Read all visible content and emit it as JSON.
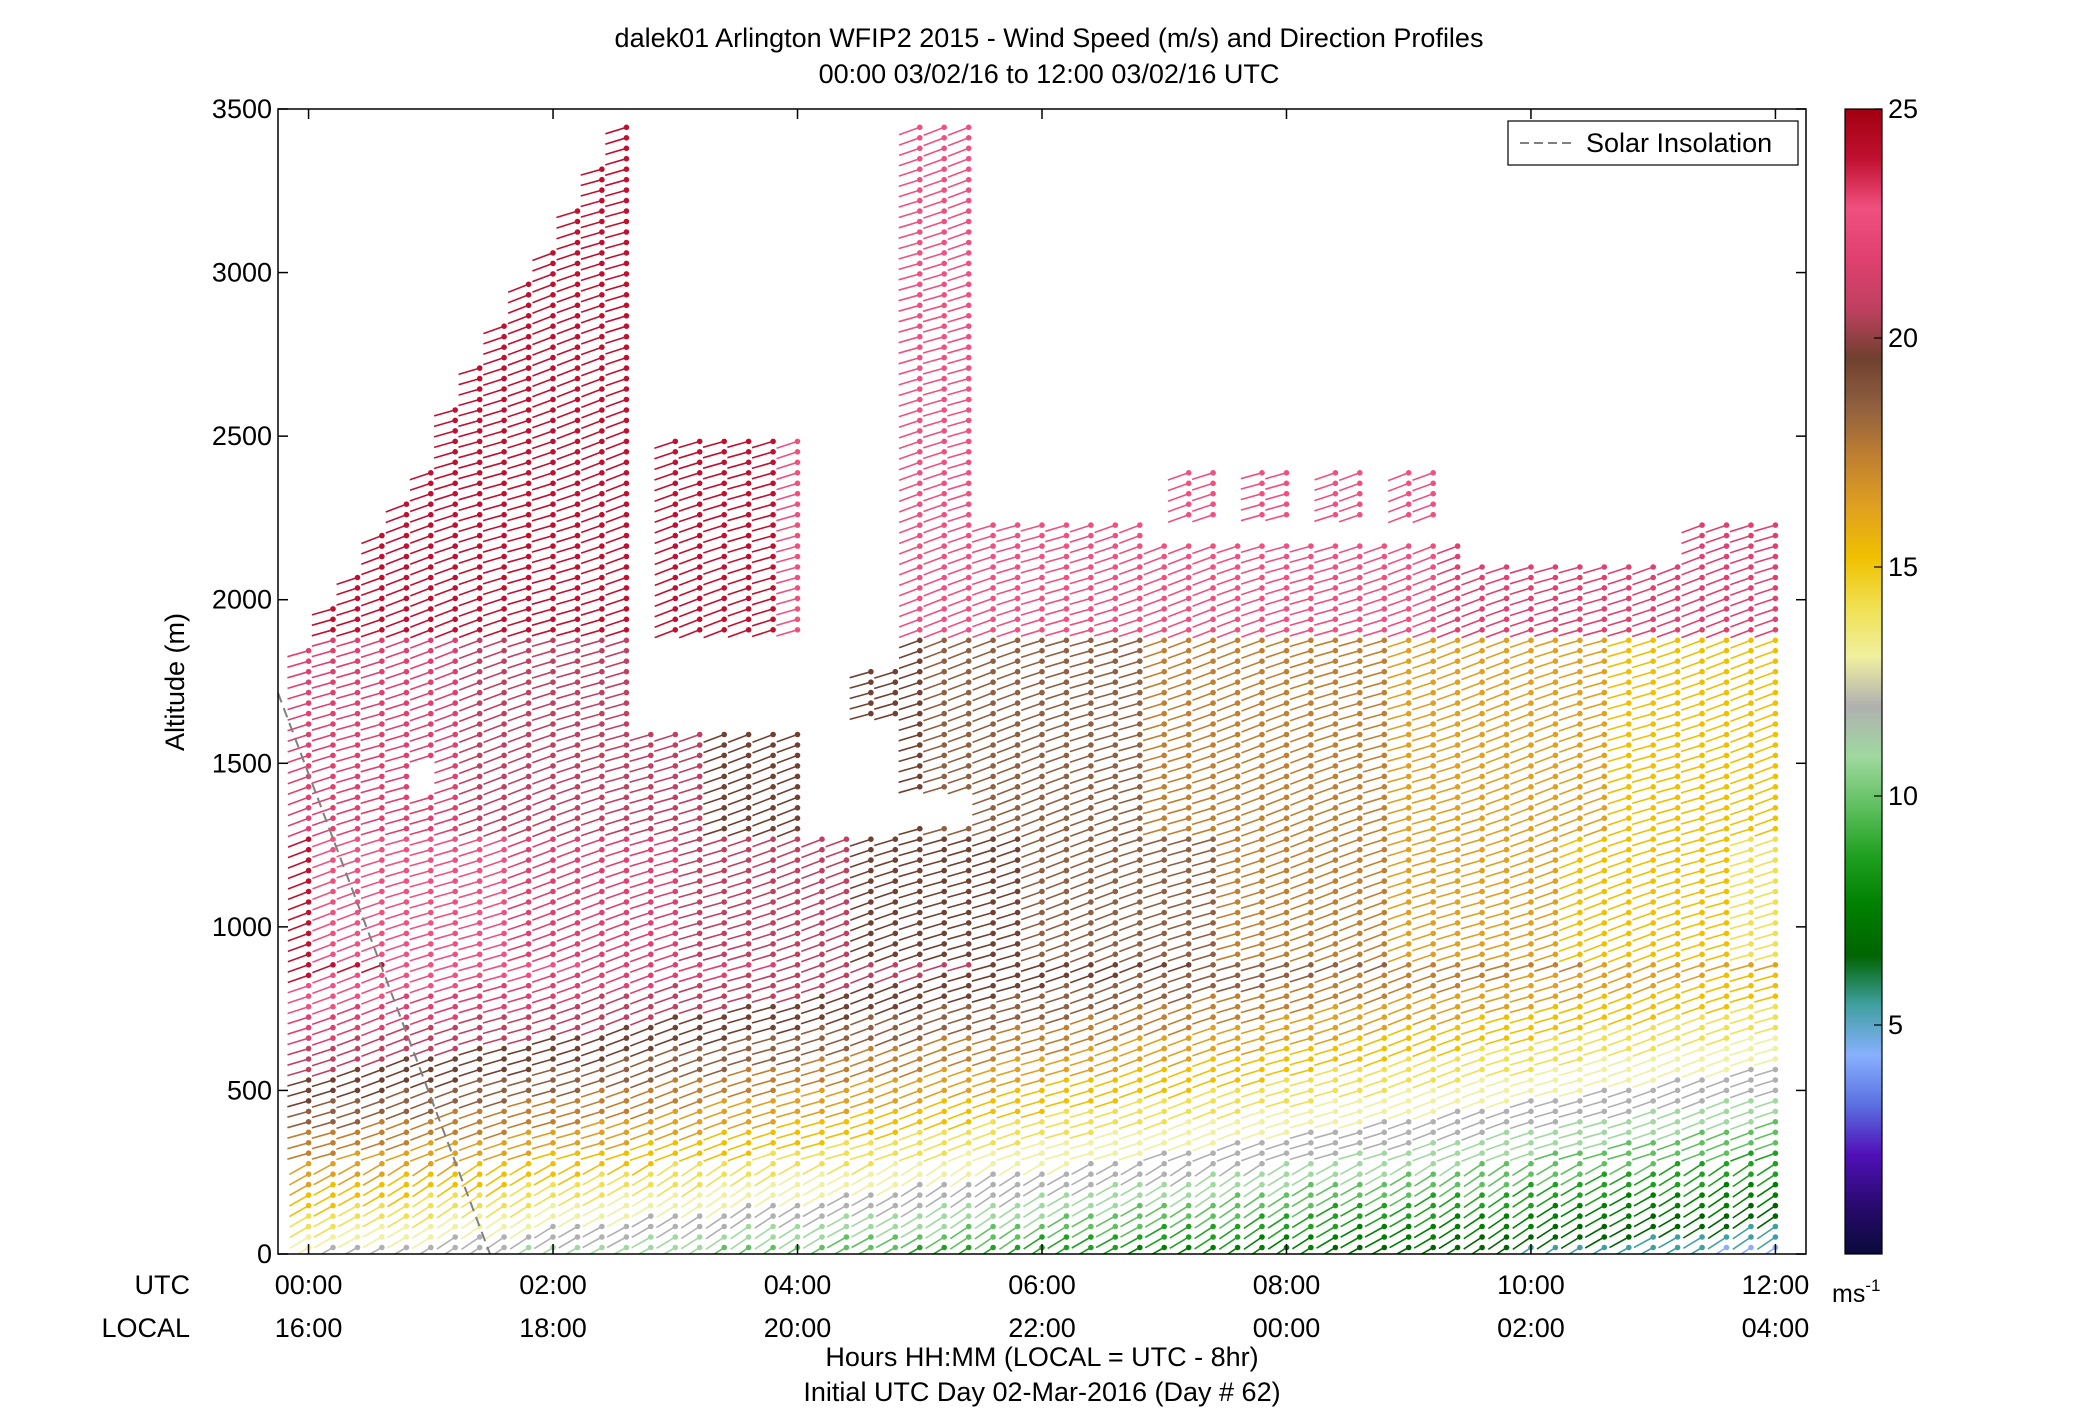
{
  "chart_data": {
    "type": "wind-barb-profile",
    "title": "dalek01 Arlington WFIP2 2015 - Wind Speed (m/s) and Direction Profiles",
    "subtitle": "00:00 03/02/16 to 12:00 03/02/16  UTC",
    "ylabel": "Altitude (m)",
    "xlabel_line1": "Hours HH:MM  (LOCAL = UTC - 8hr)",
    "xlabel_line2": "Initial UTC Day 02-Mar-2016 (Day # 62)",
    "row_utc_label": "UTC",
    "row_local_label": "LOCAL",
    "ylim": [
      0,
      3500
    ],
    "yticks": [
      "0",
      "500",
      "1000",
      "1500",
      "2000",
      "2500",
      "3000",
      "3500"
    ],
    "ytick_values": [
      0,
      500,
      1000,
      1500,
      2000,
      2500,
      3000,
      3500
    ],
    "xlim_hours": [
      -0.25,
      12.25
    ],
    "xtick_hours": [
      0,
      2,
      4,
      6,
      8,
      10,
      12
    ],
    "xticks_utc": [
      "00:00",
      "02:00",
      "04:00",
      "06:00",
      "08:00",
      "10:00",
      "12:00"
    ],
    "xticks_local": [
      "16:00",
      "18:00",
      "20:00",
      "22:00",
      "00:00",
      "02:00",
      "04:00"
    ],
    "legend": {
      "label": "Solar Insolation",
      "placement": "top-right",
      "color": "#808080"
    },
    "solar_insolation_line": {
      "hours": [
        -0.25,
        1.25
      ],
      "altitude_m": [
        1710,
        0
      ]
    },
    "colorbar": {
      "unit": "ms",
      "unit_exponent": "-1",
      "range": [
        0,
        25
      ],
      "ticks": [
        "5",
        "10",
        "15",
        "20",
        "25"
      ],
      "tick_values": [
        5,
        10,
        15,
        20,
        25
      ],
      "colors": [
        "#0a0a3a",
        "#2a0a70",
        "#5010b8",
        "#5a70e0",
        "#88b0ff",
        "#40a0a0",
        "#006400",
        "#008000",
        "#20a020",
        "#60c060",
        "#a0d8a0",
        "#b0b0b0",
        "#f0f0a0",
        "#f0e050",
        "#f0c000",
        "#e0a020",
        "#c08030",
        "#906040",
        "#704030",
        "#c04060",
        "#e04070",
        "#f05080",
        "#c01030",
        "#a00010"
      ]
    },
    "profile_times_hours_step": 0.2,
    "profile_levels_m_step": 32,
    "regimes": [
      {
        "hours": [
          0,
          5.4
        ],
        "altitude_m": [
          0,
          1300
        ],
        "speed_ms": [
          10,
          24
        ],
        "note": "near-surface weaker, aloft strong westerly"
      },
      {
        "hours": [
          5.6,
          12
        ],
        "altitude_m": [
          0,
          2200
        ],
        "speed_ms": [
          4,
          24
        ],
        "note": "low-level jet weakening toward 12 UTC"
      }
    ],
    "colors": {
      "axis": "#000000",
      "background": "#ffffff",
      "insolation": "#808080"
    }
  }
}
